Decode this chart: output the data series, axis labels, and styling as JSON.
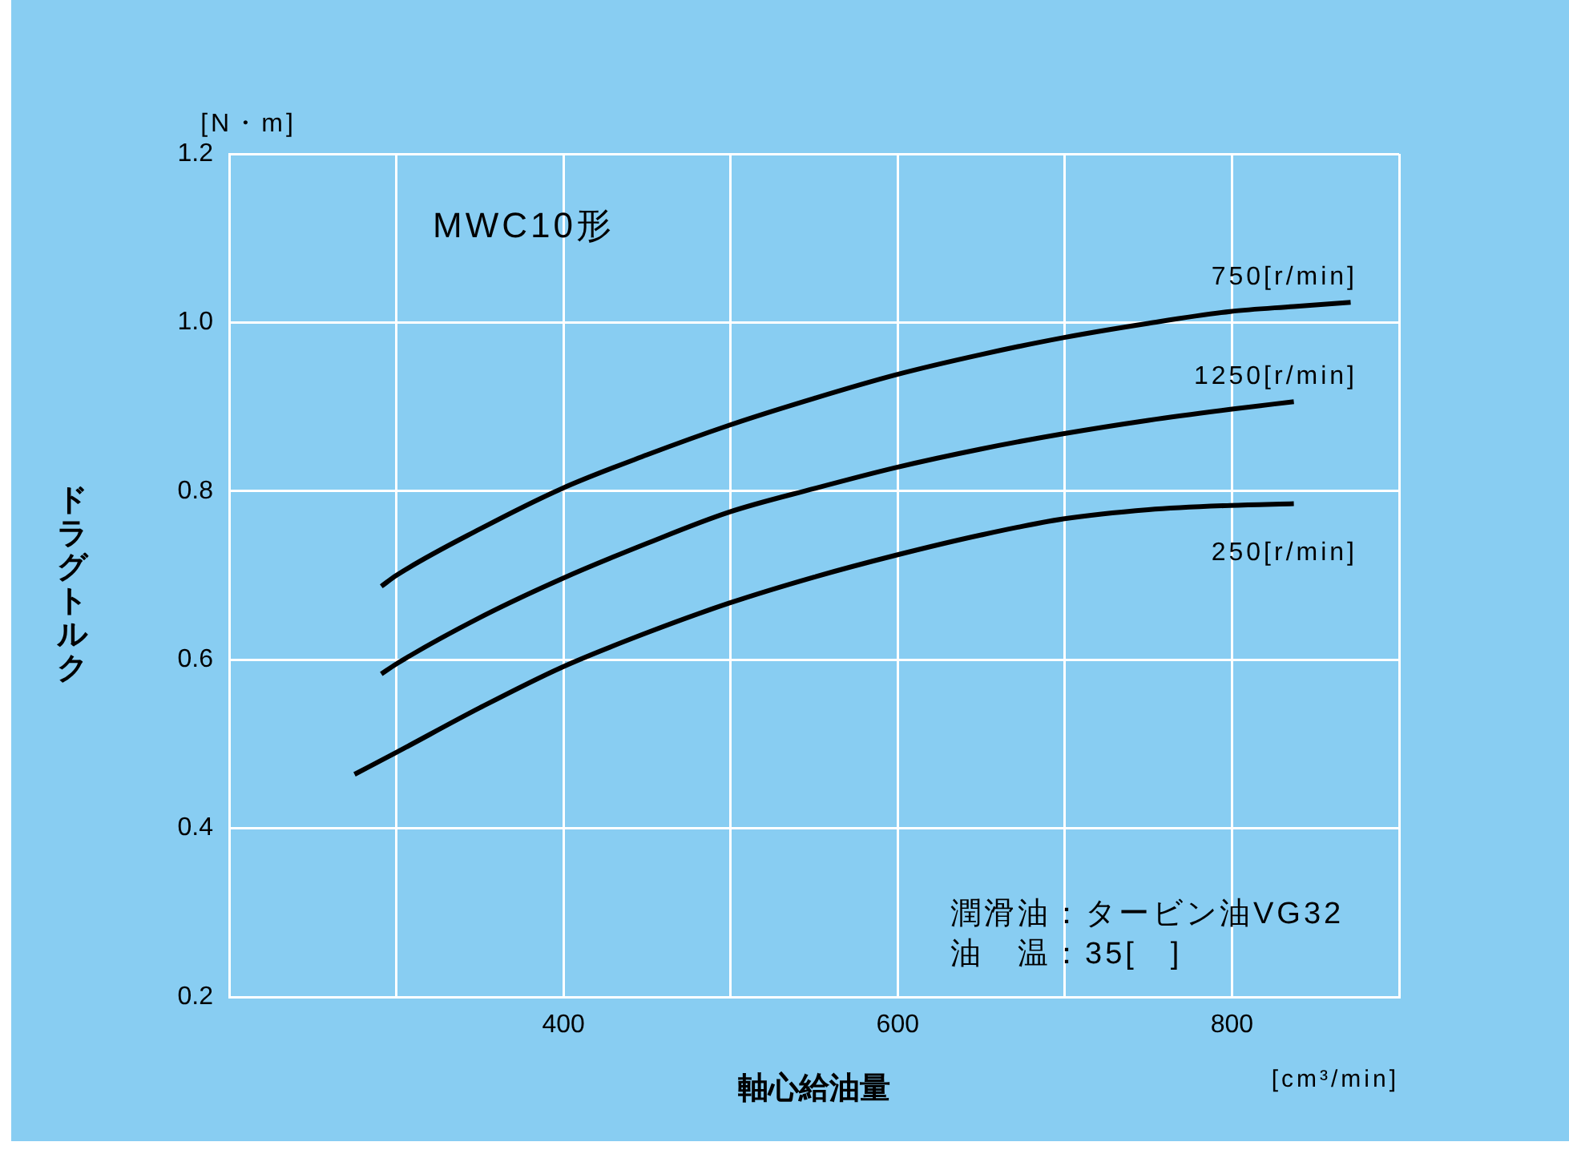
{
  "chart_data": {
    "type": "line",
    "xlabel": "軸心給油量",
    "ylabel": "ドラグトルク",
    "annotations": [
      "[N・m]",
      "[cm³/min]",
      "MWC10形",
      "潤滑油：タービン油VG32",
      "油　温：35[　]"
    ],
    "xlim": [
      200,
      900
    ],
    "xticks": [
      {
        "value": 200,
        "label": null
      },
      {
        "value": 300,
        "label": null
      },
      400,
      {
        "value": 500,
        "label": null
      },
      600,
      {
        "value": 700,
        "label": null
      },
      800,
      {
        "value": 900,
        "label": null
      }
    ],
    "ylim": [
      0.2,
      1.2
    ],
    "yticks": [
      0.2,
      0.4,
      0.6,
      0.8,
      {
        "value": 1,
        "label": "1.0"
      },
      1.2
    ],
    "grid": true,
    "legend": false,
    "marker": "none",
    "line_style": "solid",
    "series": [
      {
        "name": "750[r/min]",
        "color": "#000000",
        "x": [
          291,
          300,
          350,
          399,
          450,
          499,
          550,
          599,
          650,
          699,
          750,
          799,
          837,
          871
        ],
        "values": [
          0.687,
          0.7,
          0.755,
          0.803,
          0.843,
          0.878,
          0.91,
          0.938,
          0.962,
          0.982,
          0.999,
          1.013,
          1.019,
          1.024
        ]
      },
      {
        "name": "1250[r/min]",
        "color": "#000000",
        "x": [
          291,
          300,
          350,
          399,
          450,
          499,
          550,
          599,
          650,
          699,
          750,
          799,
          837
        ],
        "values": [
          0.583,
          0.595,
          0.65,
          0.696,
          0.738,
          0.775,
          0.803,
          0.828,
          0.85,
          0.868,
          0.884,
          0.897,
          0.906
        ]
      },
      {
        "name": "250[r/min]",
        "color": "#000000",
        "x": [
          275,
          300,
          350,
          399,
          450,
          499,
          550,
          599,
          650,
          699,
          750,
          799,
          837
        ],
        "values": [
          0.464,
          0.49,
          0.543,
          0.591,
          0.632,
          0.667,
          0.698,
          0.724,
          0.748,
          0.767,
          0.778,
          0.783,
          0.785
        ]
      }
    ]
  }
}
